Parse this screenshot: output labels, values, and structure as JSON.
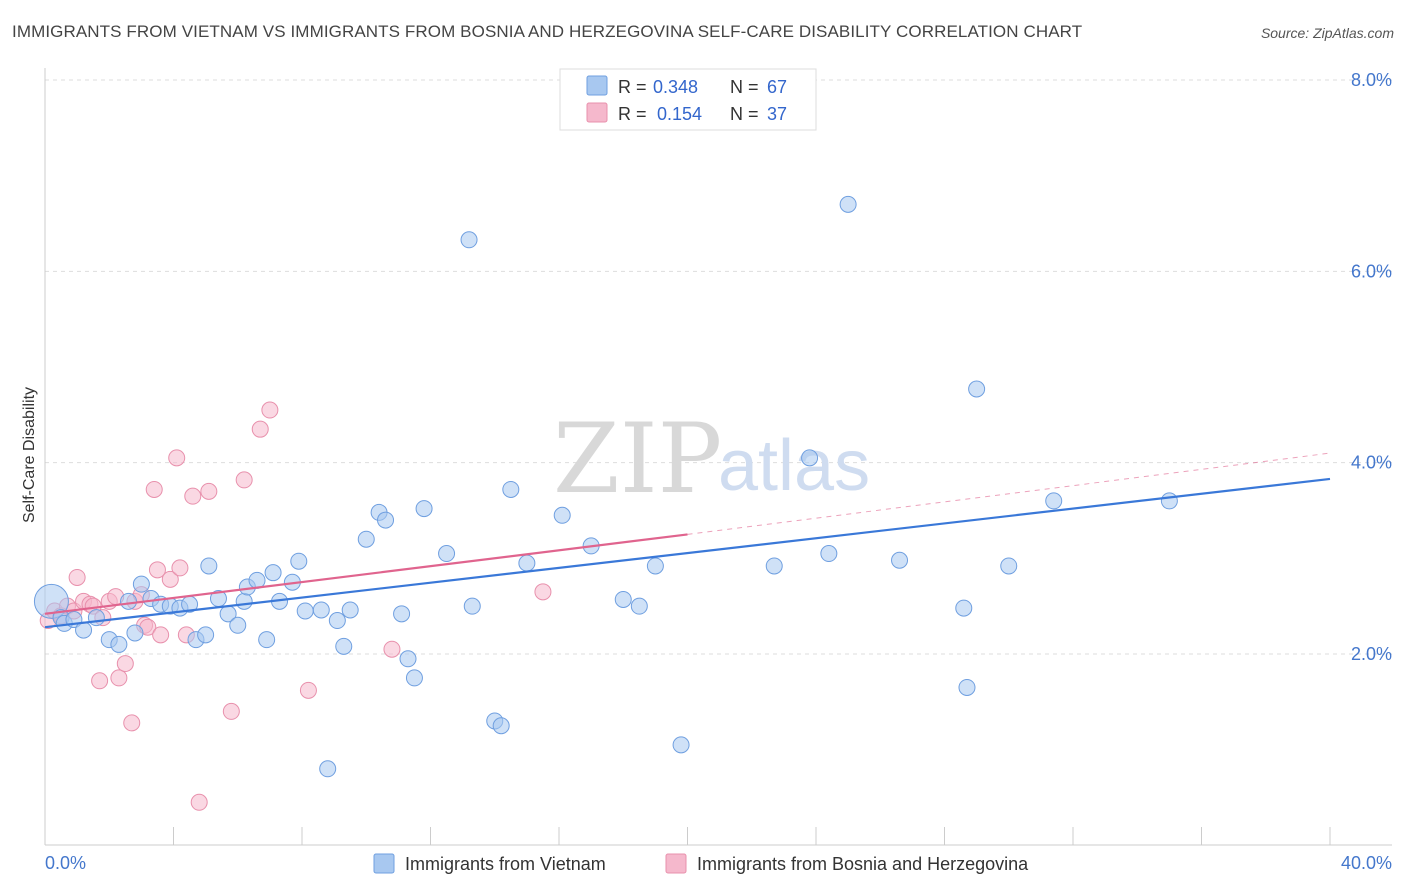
{
  "title": "IMMIGRANTS FROM VIETNAM VS IMMIGRANTS FROM BOSNIA AND HERZEGOVINA SELF-CARE DISABILITY CORRELATION CHART",
  "source": "Source: ZipAtlas.com",
  "watermark": {
    "zip": "ZIP",
    "atlas": "atlas"
  },
  "colors": {
    "blue": "#3a78d8",
    "pink": "#e0648e",
    "blue_fill": "#a8c8f0",
    "pink_fill": "#f5b8cc"
  },
  "stats": {
    "blue": {
      "r_label": "R =",
      "r": "0.348",
      "n_label": "N =",
      "n": "67"
    },
    "pink": {
      "r_label": "R =",
      "r": "0.154",
      "n_label": "N =",
      "n": "37"
    }
  },
  "chart_data": {
    "type": "scatter",
    "title": "IMMIGRANTS FROM VIETNAM VS IMMIGRANTS FROM BOSNIA AND HERZEGOVINA SELF-CARE DISABILITY CORRELATION CHART",
    "xlabel": "",
    "ylabel": "Self-Care Disability",
    "xlim": [
      0,
      40
    ],
    "ylim": [
      0,
      8.4
    ],
    "x_ticks": [
      "0.0%",
      "40.0%"
    ],
    "y_ticks": [
      {
        "value": 2,
        "label": "2.0%"
      },
      {
        "value": 4,
        "label": "4.0%"
      },
      {
        "value": 6,
        "label": "6.0%"
      },
      {
        "value": 8,
        "label": "8.0%"
      }
    ],
    "grid": true,
    "legend_position": "bottom",
    "series": [
      {
        "name": "Immigrants from Vietnam",
        "color": "#3a78d8",
        "trend": {
          "x": [
            0,
            40
          ],
          "y": [
            2.28,
            3.83
          ],
          "dashed_to": null
        },
        "points": [
          [
            0.2,
            2.55
          ],
          [
            0.5,
            2.38
          ],
          [
            0.6,
            2.32
          ],
          [
            0.9,
            2.36
          ],
          [
            1.2,
            2.25
          ],
          [
            1.6,
            2.38
          ],
          [
            2.0,
            2.15
          ],
          [
            2.3,
            2.1
          ],
          [
            2.6,
            2.55
          ],
          [
            2.8,
            2.22
          ],
          [
            3.0,
            2.73
          ],
          [
            3.3,
            2.58
          ],
          [
            3.6,
            2.52
          ],
          [
            3.9,
            2.5
          ],
          [
            4.2,
            2.48
          ],
          [
            4.5,
            2.52
          ],
          [
            4.7,
            2.15
          ],
          [
            5.0,
            2.2
          ],
          [
            5.1,
            2.92
          ],
          [
            5.4,
            2.58
          ],
          [
            5.7,
            2.42
          ],
          [
            6.0,
            2.3
          ],
          [
            6.2,
            2.55
          ],
          [
            6.3,
            2.7
          ],
          [
            6.6,
            2.77
          ],
          [
            6.9,
            2.15
          ],
          [
            7.1,
            2.85
          ],
          [
            7.3,
            2.55
          ],
          [
            7.7,
            2.75
          ],
          [
            7.9,
            2.97
          ],
          [
            8.1,
            2.45
          ],
          [
            8.6,
            2.46
          ],
          [
            8.8,
            0.8
          ],
          [
            9.1,
            2.35
          ],
          [
            9.3,
            2.08
          ],
          [
            9.5,
            2.46
          ],
          [
            10.0,
            3.2
          ],
          [
            10.4,
            3.48
          ],
          [
            10.6,
            3.4
          ],
          [
            11.1,
            2.42
          ],
          [
            11.3,
            1.95
          ],
          [
            11.5,
            1.75
          ],
          [
            11.8,
            3.52
          ],
          [
            12.5,
            3.05
          ],
          [
            13.2,
            6.33
          ],
          [
            13.3,
            2.5
          ],
          [
            14.0,
            1.3
          ],
          [
            14.2,
            1.25
          ],
          [
            14.5,
            3.72
          ],
          [
            15.0,
            2.95
          ],
          [
            16.1,
            3.45
          ],
          [
            17.0,
            3.13
          ],
          [
            18.0,
            2.57
          ],
          [
            18.5,
            2.5
          ],
          [
            19.0,
            2.92
          ],
          [
            19.8,
            1.05
          ],
          [
            22.7,
            2.92
          ],
          [
            23.8,
            4.05
          ],
          [
            24.4,
            3.05
          ],
          [
            25.0,
            6.7
          ],
          [
            26.6,
            2.98
          ],
          [
            28.6,
            2.48
          ],
          [
            28.7,
            1.65
          ],
          [
            29.0,
            4.77
          ],
          [
            30.0,
            2.92
          ],
          [
            31.4,
            3.6
          ],
          [
            35.0,
            3.6
          ]
        ]
      },
      {
        "name": "Immigrants from Bosnia and Herzegovina",
        "color": "#e0648e",
        "trend": {
          "x": [
            0,
            20
          ],
          "y": [
            2.42,
            3.25
          ],
          "dashed_to": [
            40,
            4.1
          ]
        },
        "points": [
          [
            0.1,
            2.35
          ],
          [
            0.3,
            2.45
          ],
          [
            0.5,
            2.4
          ],
          [
            0.7,
            2.5
          ],
          [
            0.9,
            2.45
          ],
          [
            1.0,
            2.8
          ],
          [
            1.2,
            2.55
          ],
          [
            1.4,
            2.52
          ],
          [
            1.5,
            2.5
          ],
          [
            1.7,
            1.72
          ],
          [
            1.8,
            2.38
          ],
          [
            2.0,
            2.55
          ],
          [
            2.2,
            2.6
          ],
          [
            2.3,
            1.75
          ],
          [
            2.5,
            1.9
          ],
          [
            2.7,
            1.28
          ],
          [
            2.8,
            2.55
          ],
          [
            3.0,
            2.62
          ],
          [
            3.1,
            2.3
          ],
          [
            3.2,
            2.28
          ],
          [
            3.4,
            3.72
          ],
          [
            3.5,
            2.88
          ],
          [
            3.6,
            2.2
          ],
          [
            3.9,
            2.78
          ],
          [
            4.1,
            4.05
          ],
          [
            4.2,
            2.9
          ],
          [
            4.4,
            2.2
          ],
          [
            4.6,
            3.65
          ],
          [
            4.8,
            0.45
          ],
          [
            5.1,
            3.7
          ],
          [
            5.8,
            1.4
          ],
          [
            6.2,
            3.82
          ],
          [
            6.7,
            4.35
          ],
          [
            7.0,
            4.55
          ],
          [
            8.2,
            1.62
          ],
          [
            10.8,
            2.05
          ],
          [
            15.5,
            2.65
          ]
        ]
      }
    ]
  },
  "legend": {
    "items": [
      {
        "label": "Immigrants from Vietnam"
      },
      {
        "label": "Immigrants from Bosnia and Herzegovina"
      }
    ]
  }
}
